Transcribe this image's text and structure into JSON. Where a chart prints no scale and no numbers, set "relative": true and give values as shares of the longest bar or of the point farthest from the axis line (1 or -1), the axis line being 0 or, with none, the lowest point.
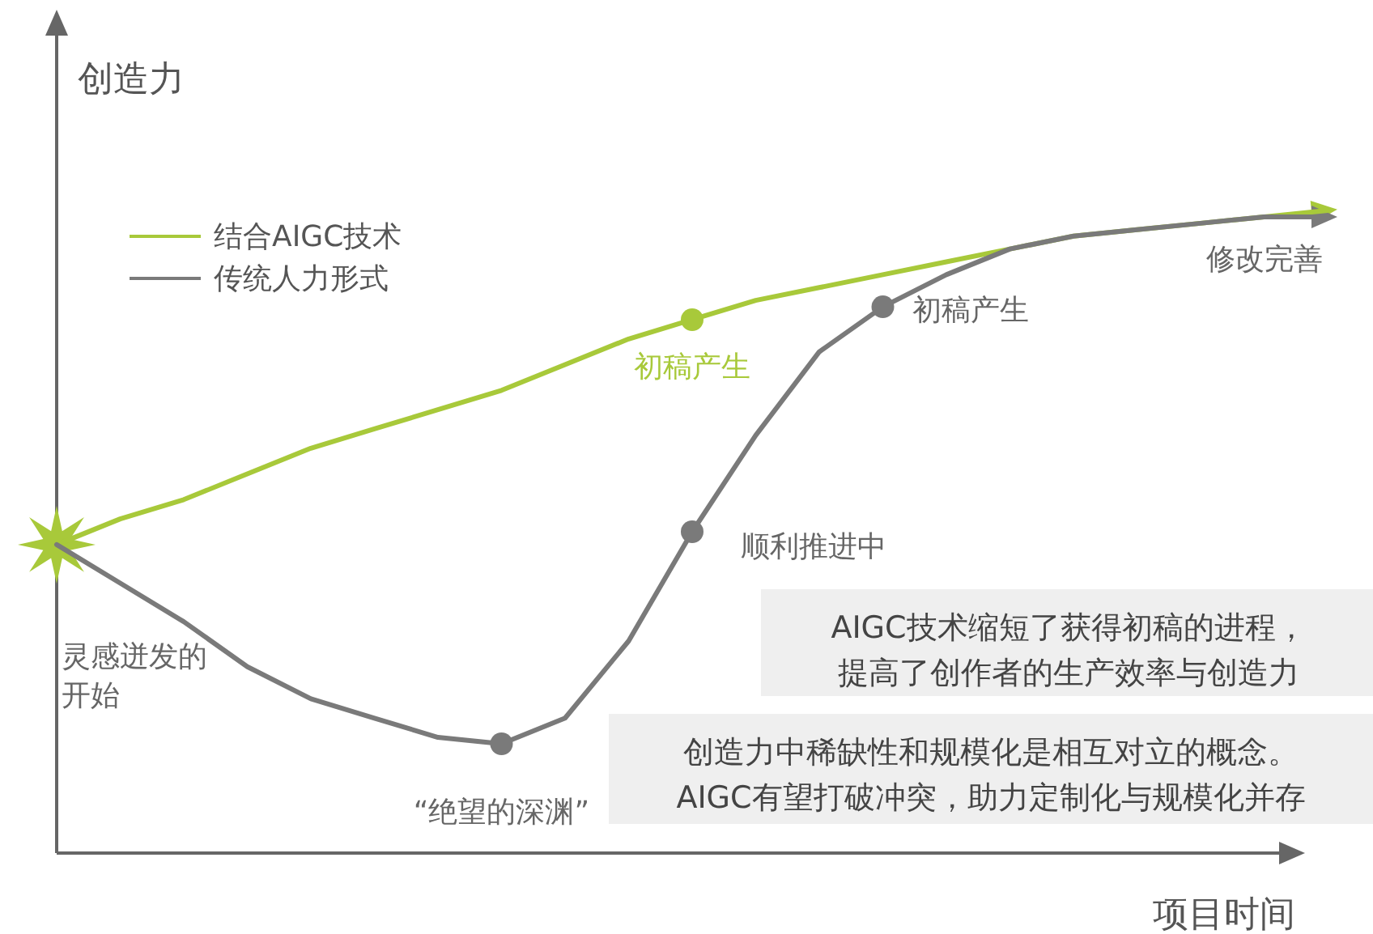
{
  "chart_data": {
    "type": "line",
    "relative": true,
    "xlabel": "项目时间",
    "ylabel": "创造力",
    "legend": "top left",
    "categories": [
      null,
      null,
      null,
      null,
      null,
      null,
      null,
      null,
      null,
      null,
      null,
      null,
      null,
      null,
      null,
      null,
      null,
      null,
      null,
      null,
      null
    ],
    "series": [
      {
        "name": "结合AIGC技术",
        "color": "#a8c93a",
        "values": [
          0.48,
          0.52,
          0.55,
          0.59,
          0.63,
          0.66,
          0.69,
          0.72,
          0.76,
          0.8,
          0.83,
          0.86,
          0.88,
          0.9,
          0.92,
          0.94,
          0.96,
          0.97,
          0.98,
          0.99,
          1.0
        ]
      },
      {
        "name": "传统人力形式",
        "color": "#7a7a7a",
        "values": [
          0.48,
          0.42,
          0.36,
          0.29,
          0.24,
          0.21,
          0.18,
          0.17,
          0.21,
          0.33,
          0.5,
          0.65,
          0.78,
          0.85,
          0.9,
          0.94,
          0.96,
          0.97,
          0.98,
          0.99,
          0.99
        ]
      }
    ],
    "annotations": [
      "初稿产生",
      "“绝望的深渊”",
      "顺利推进中",
      "初稿产生",
      "修改完善",
      "灵感迸发的开始",
      "AIGC技术缩短了获得初稿的进程，提高了创作者的生产效率与创造力",
      "创造力中稀缺性和规模化是相互对立的概念。AIGC有望打破冲突，助力定制化与规模化并存"
    ]
  }
}
